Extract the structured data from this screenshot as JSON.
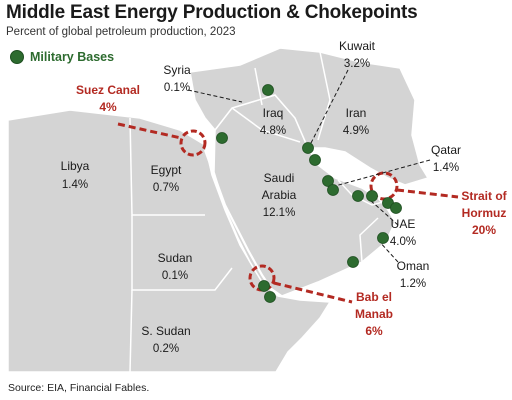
{
  "title": "Middle East Energy Production & Chokepoints",
  "subtitle": "Percent of global petroleum production, 2023",
  "legend": {
    "label": "Military Bases",
    "color": "#2d6b2f"
  },
  "source": "Source: EIA, Financial Fables.",
  "colors": {
    "land": "#d4d4d4",
    "border": "#ffffff",
    "chokepoint": "#b32a22",
    "base": "#2d6b2f"
  },
  "countries": [
    {
      "name": "Libya",
      "value": "1.4%"
    },
    {
      "name": "Egypt",
      "value": "0.7%"
    },
    {
      "name": "Sudan",
      "value": "0.1%"
    },
    {
      "name": "S. Sudan",
      "value": "0.2%"
    },
    {
      "name": "Syria",
      "value": "0.1%"
    },
    {
      "name": "Iraq",
      "value": "4.8%"
    },
    {
      "name": "Kuwait",
      "value": "3.2%"
    },
    {
      "name": "Iran",
      "value": "4.9%"
    },
    {
      "name": "Saudi",
      "name2": "Arabia",
      "value": "12.1%"
    },
    {
      "name": "Qatar",
      "value": "1.4%"
    },
    {
      "name": "UAE",
      "value": "4.0%"
    },
    {
      "name": "Oman",
      "value": "1.2%"
    }
  ],
  "chokepoints": [
    {
      "line1": "Suez Canal",
      "line2": "4%"
    },
    {
      "line1": "Strait of",
      "line2": "Hormuz",
      "line3": "20%"
    },
    {
      "line1": "Bab el",
      "line2": "Manab",
      "line3": "6%"
    }
  ]
}
